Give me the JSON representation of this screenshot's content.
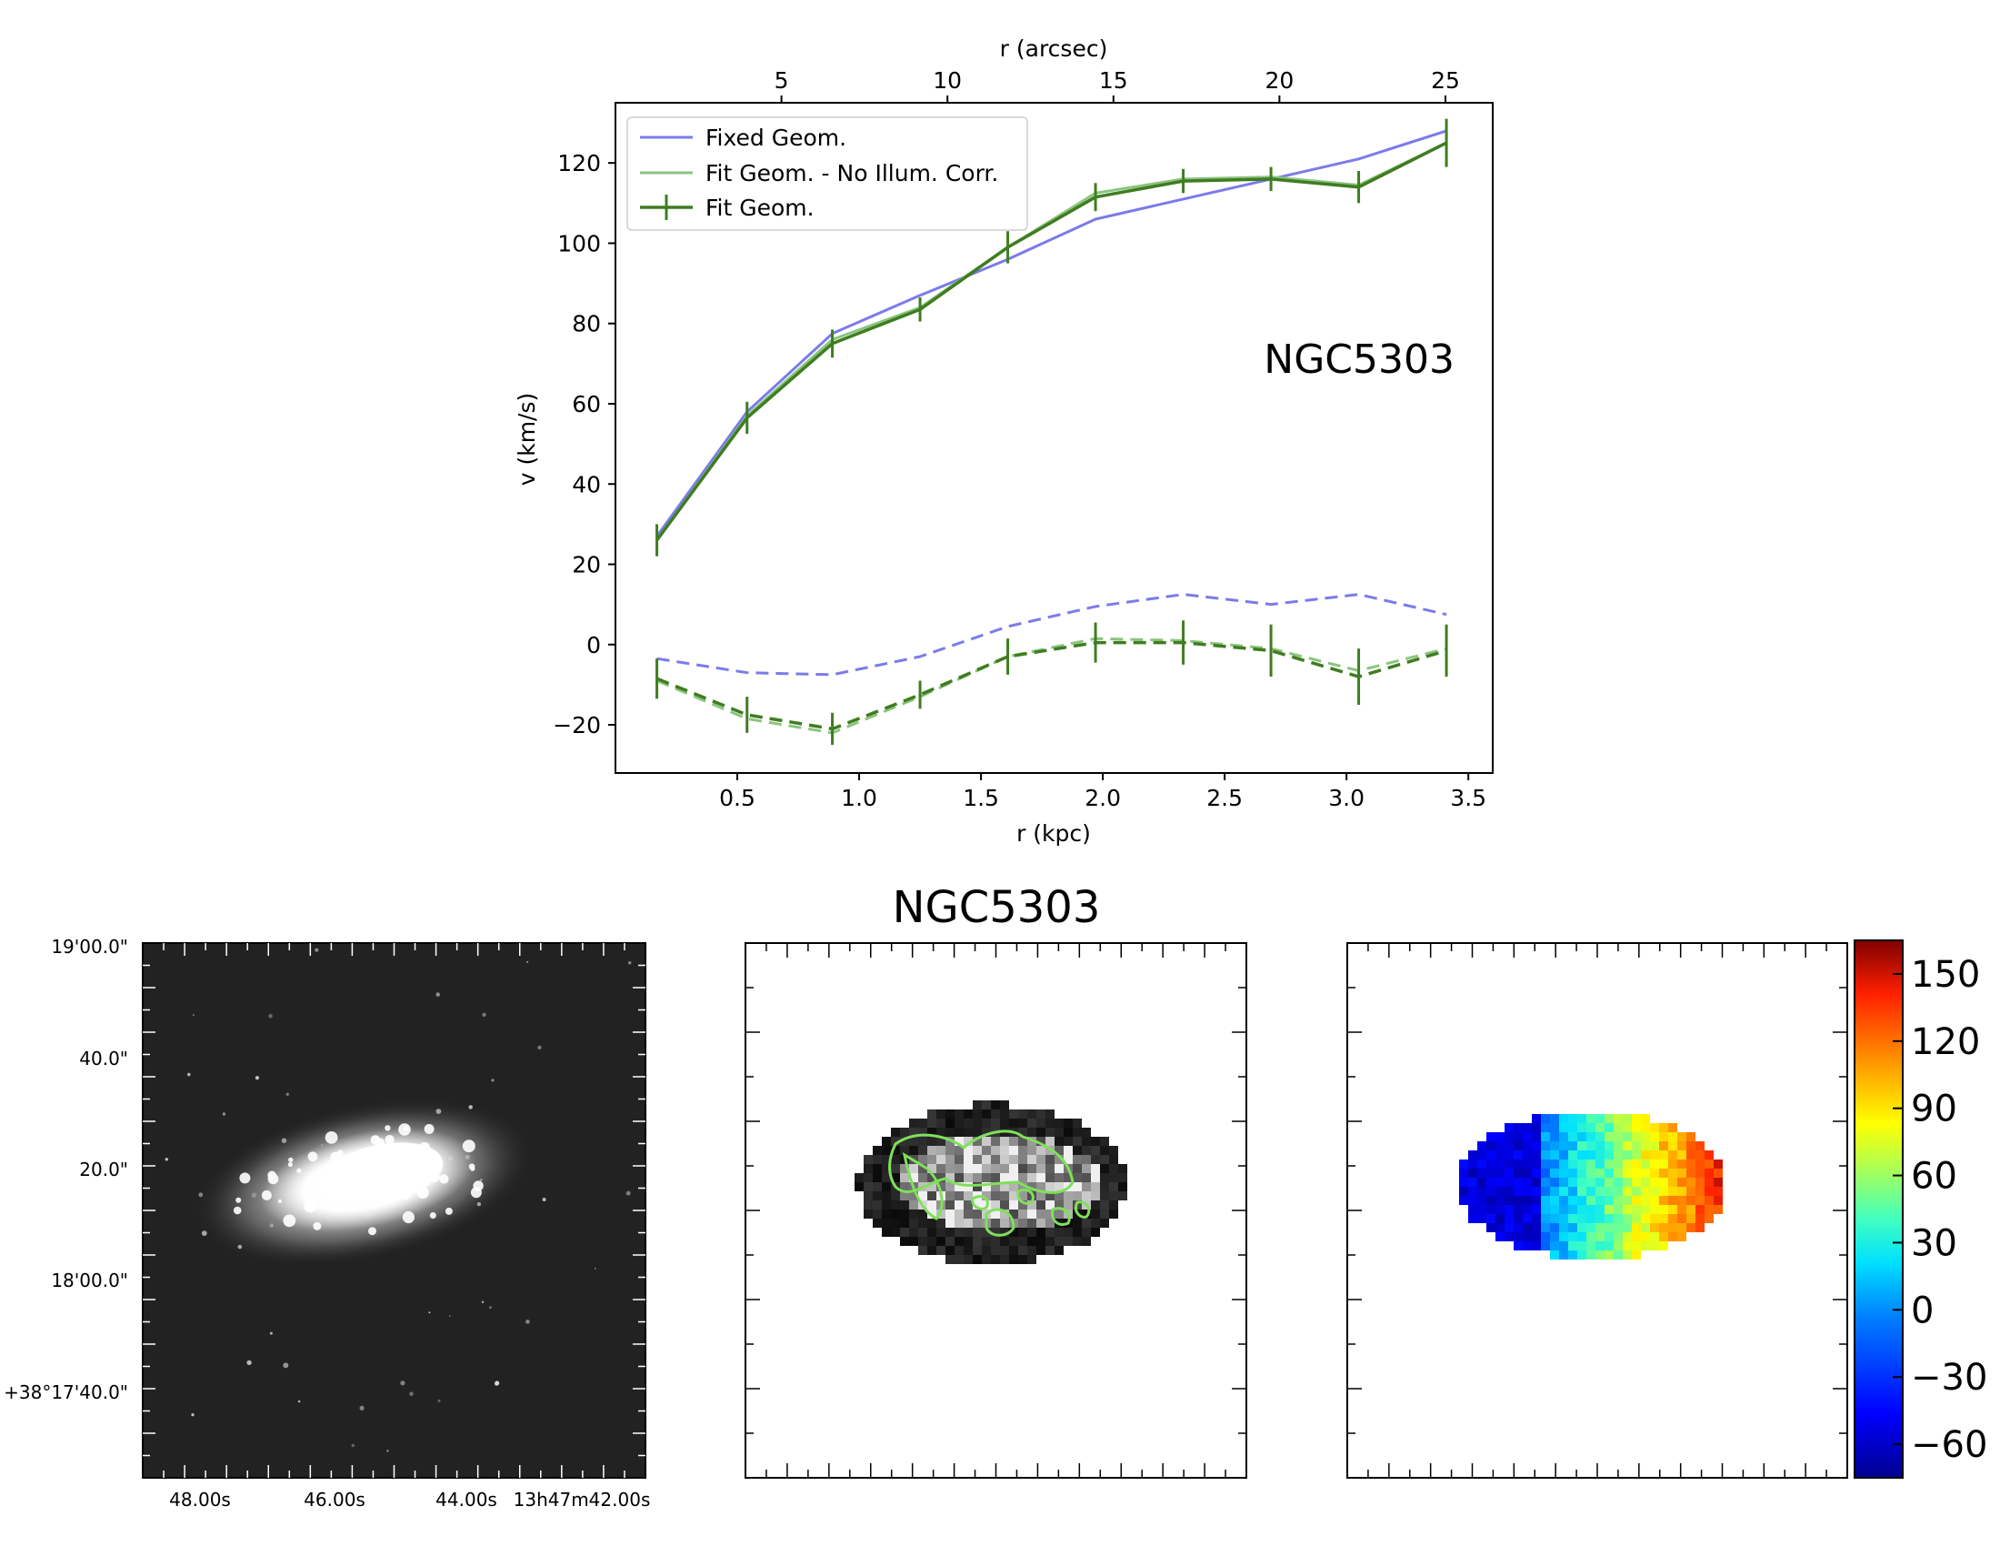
{
  "chart_data": [
    {
      "type": "line",
      "xlabel": "r (kpc)",
      "x2label": "r (arcsec)",
      "ylabel": "v (km/s)",
      "annotation": "NGC5303",
      "xlim": [
        0.0,
        3.6
      ],
      "ylim": [
        -32,
        135
      ],
      "x_ticks": [
        0.5,
        1.0,
        1.5,
        2.0,
        2.5,
        3.0,
        3.5
      ],
      "x_tick_labels": [
        "0.5",
        "1.0",
        "1.5",
        "2.0",
        "2.5",
        "3.0",
        "3.5"
      ],
      "y_ticks": [
        -20,
        0,
        20,
        40,
        60,
        80,
        100,
        120
      ],
      "y_tick_labels": [
        "−20",
        "0",
        "20",
        "40",
        "60",
        "80",
        "100",
        "120"
      ],
      "x2_ticks_arcsec": [
        5,
        10,
        15,
        20,
        25
      ],
      "x2_tick_labels": [
        "5",
        "10",
        "15",
        "20",
        "25"
      ],
      "arcsec_per_kpc": 7.34,
      "legend_position": "upper-left",
      "x": [
        0.17,
        0.54,
        0.89,
        1.25,
        1.61,
        1.97,
        2.33,
        2.69,
        3.05,
        3.41
      ],
      "series": [
        {
          "name": "Fixed Geom.",
          "role": "rotation",
          "color": "#7b7bea",
          "style": "solid",
          "values": [
            27,
            58,
            77.5,
            87,
            96,
            106,
            111,
            116,
            121,
            128
          ]
        },
        {
          "name": "Fit Geom. - No Illum. Corr.",
          "role": "rotation",
          "color": "#8bc47f",
          "style": "solid",
          "values": [
            26,
            57,
            76,
            84,
            99,
            112.5,
            116,
            116.5,
            114.5,
            125
          ]
        },
        {
          "name": "Fit Geom.",
          "role": "rotation",
          "color": "#3f7d20",
          "style": "solid-errorbar",
          "values": [
            26,
            56.5,
            75,
            83.5,
            99,
            111.5,
            115.5,
            116,
            114,
            125
          ],
          "errors": [
            4,
            4,
            3.5,
            3,
            4,
            3.5,
            3,
            3,
            4,
            6
          ]
        },
        {
          "role": "radial",
          "color": "#7b7bea",
          "style": "dashed",
          "values": [
            -3.5,
            -7,
            -7.5,
            -3,
            4.5,
            9.5,
            12.5,
            10,
            12.5,
            7.5
          ]
        },
        {
          "role": "radial",
          "color": "#8bc47f",
          "style": "dashed",
          "values": [
            -9,
            -18.5,
            -22,
            -13,
            -3,
            1.5,
            1,
            -1,
            -6.5,
            -1
          ]
        },
        {
          "role": "radial-errorbar",
          "color": "#3f7d20",
          "style": "dashed-errorbar",
          "values": [
            -8.5,
            -17.5,
            -21,
            -12.5,
            -3,
            0.5,
            0.5,
            -1.5,
            -8,
            -1.5
          ],
          "errors": [
            5,
            4.5,
            4,
            3.5,
            4.5,
            5,
            5.5,
            6.5,
            7,
            6.5
          ]
        }
      ]
    },
    {
      "type": "image",
      "description_role": "optical",
      "y_tick_labels": [
        "19'00.0\"",
        "40.0\"",
        "20.0\"",
        "18'00.0\"",
        "+38°17'40.0\""
      ],
      "x_tick_labels": [
        "48.00s",
        "46.00s",
        "44.00s",
        "13h47m42.00s"
      ]
    },
    {
      "type": "heatmap",
      "description_role": "flux-map",
      "title": "NGC5303",
      "contour_color": "#7fe05a"
    },
    {
      "type": "heatmap",
      "description_role": "velocity-map",
      "colorbar_ticks": [
        150,
        120,
        90,
        60,
        30,
        0,
        -30,
        -60
      ],
      "colorbar_tick_labels": [
        "150",
        "120",
        "90",
        "60",
        "30",
        "0",
        "−30",
        "−60"
      ],
      "colorbar_range": [
        -75,
        165
      ]
    }
  ]
}
